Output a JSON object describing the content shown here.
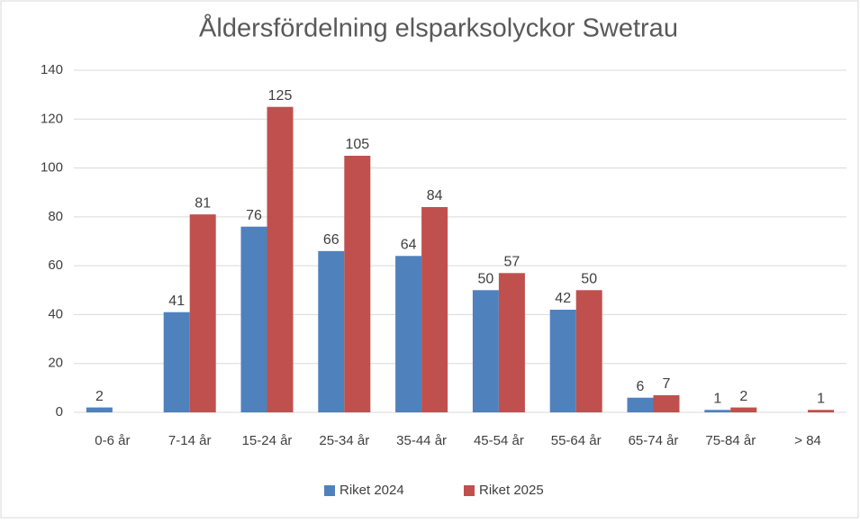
{
  "chart_data": {
    "type": "bar",
    "title": "Åldersfördelning elsparksolyckor Swetrau",
    "categories": [
      "0-6 år",
      "7-14 år",
      "15-24 år",
      "25-34 år",
      "35-44 år",
      "45-54 år",
      "55-64 år",
      "65-74 år",
      "75-84 år",
      "> 84"
    ],
    "series": [
      {
        "name": "Riket 2024",
        "color": "#4f81bd",
        "values": [
          2,
          41,
          76,
          66,
          64,
          50,
          42,
          6,
          1,
          null
        ]
      },
      {
        "name": "Riket 2025",
        "color": "#c0504d",
        "values": [
          null,
          81,
          125,
          105,
          84,
          57,
          50,
          7,
          2,
          1
        ]
      }
    ],
    "ylim": [
      0,
      140
    ],
    "yticks": [
      0,
      20,
      40,
      60,
      80,
      100,
      120,
      140
    ],
    "grid": true,
    "legend": "bottom"
  }
}
